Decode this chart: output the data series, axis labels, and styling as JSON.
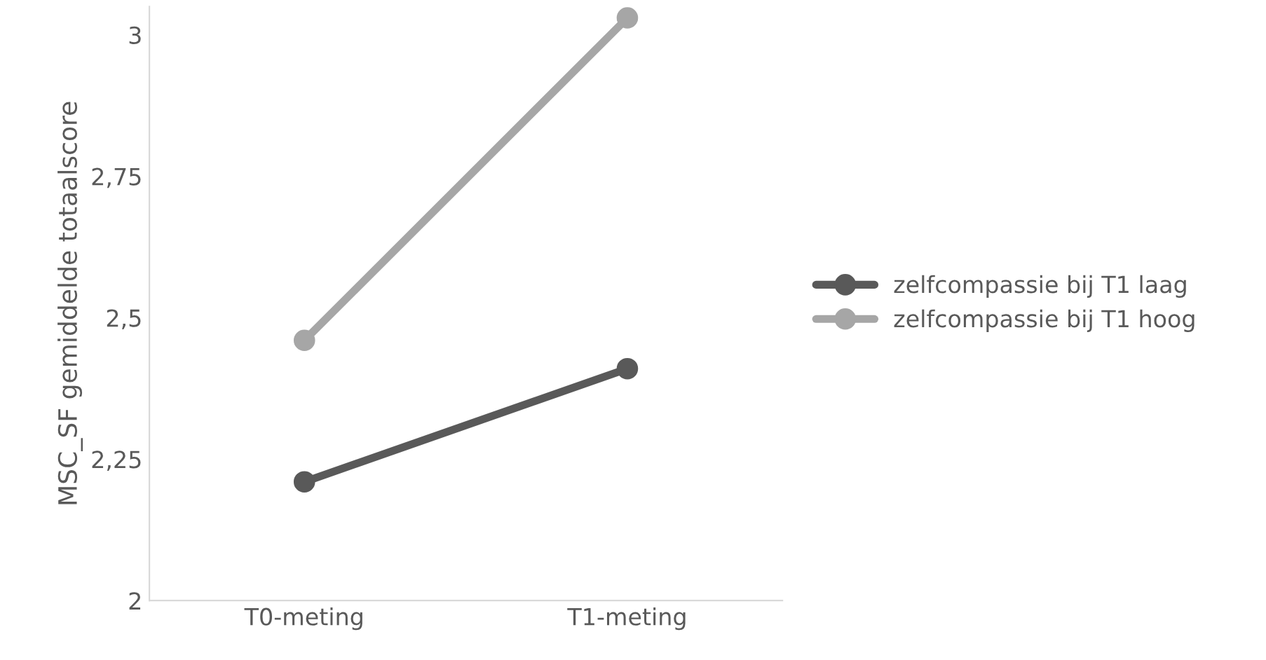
{
  "chart_data": {
    "type": "line",
    "ylabel": "MSC_SF gemiddelde totaalscore",
    "categories": [
      "T0-meting",
      "T1-meting"
    ],
    "series": [
      {
        "name": "zelfcompassie bij T1 laag",
        "color": "#595959",
        "values": [
          2.21,
          2.41
        ]
      },
      {
        "name": "zelfcompassie bij T1 hoog",
        "color": "#a6a6a6",
        "values": [
          2.46,
          3.03
        ]
      }
    ],
    "ylim": [
      2,
      3.05
    ],
    "yticks": [
      2,
      {
        "value": 2.25,
        "label": "2,25"
      },
      {
        "value": 2.5,
        "label": "2,5"
      },
      {
        "value": 2.75,
        "label": "2,75"
      },
      3
    ],
    "marker": "circle",
    "line_style": "solid",
    "legend": "right",
    "grid": false
  }
}
